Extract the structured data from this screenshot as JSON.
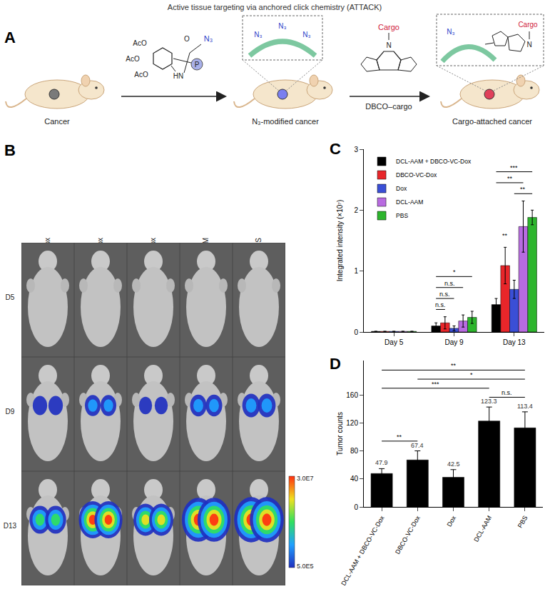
{
  "figure": {
    "panel_labels": [
      "A",
      "B",
      "C",
      "D"
    ],
    "schematic": {
      "title": "Active tissue targeting via anchored click chemistry (ATTACK)",
      "stages": [
        "Cancer",
        "N₃-modified cancer",
        "Cargo-attached cancer"
      ],
      "sugar": {
        "groups": [
          "AcO",
          "AcO",
          "AcO"
        ],
        "amide": "HN",
        "carbonyl": "O",
        "azide": "N₃",
        "anchor": "P"
      },
      "membrane_group": "N₃",
      "reagent": {
        "name": "DBCO–cargo",
        "cargo": "Cargo",
        "nitrogen": "N"
      }
    },
    "imaging": {
      "columns": [
        "DCL-AAM + DBCO-VC-Dox",
        "DBCO-VC-Dox",
        "Dox",
        "DCL-AAM",
        "PBS"
      ],
      "rows": [
        "D5",
        "D9",
        "D13"
      ],
      "colorbar": {
        "max": "3.0E7",
        "min": "5.0E5"
      }
    }
  },
  "chart_data": [
    {
      "type": "bar",
      "ylabel": "Integrated intensity (×10⁷)",
      "categories": [
        "Day 5",
        "Day 9",
        "Day 13"
      ],
      "series": [
        {
          "name": "DCL-AAM + DBCO-VC-Dox",
          "color": "#000000",
          "values": [
            0.01,
            0.1,
            0.45
          ],
          "errors": [
            0,
            0.05,
            0.1
          ]
        },
        {
          "name": "DBCO-VC-Dox",
          "color": "#e8262a",
          "values": [
            0.01,
            0.15,
            1.09
          ],
          "errors": [
            0,
            0.1,
            0.3
          ]
        },
        {
          "name": "Dox",
          "color": "#3a4fd6",
          "values": [
            0.01,
            0.06,
            0.7
          ],
          "errors": [
            0,
            0.04,
            0.15
          ]
        },
        {
          "name": "DCL-AAM",
          "color": "#b86be0",
          "values": [
            0.01,
            0.18,
            1.73
          ],
          "errors": [
            0,
            0.1,
            0.42
          ]
        },
        {
          "name": "PBS",
          "color": "#2db52d",
          "values": [
            0.01,
            0.24,
            1.88
          ],
          "errors": [
            0,
            0.1,
            0.12
          ]
        }
      ],
      "ylim": [
        0,
        3
      ],
      "yticks": [
        0,
        1,
        2,
        3
      ],
      "grid": false,
      "legend": "upper left",
      "annotations": [
        {
          "category": "Day 9",
          "from": "DCL-AAM + DBCO-VC-Dox",
          "to": "PBS",
          "text": "*"
        },
        {
          "category": "Day 9",
          "from": "DCL-AAM + DBCO-VC-Dox",
          "to": "DCL-AAM",
          "text": "n.s."
        },
        {
          "category": "Day 9",
          "from": "DCL-AAM + DBCO-VC-Dox",
          "to": "Dox",
          "text": "n.s."
        },
        {
          "category": "Day 9",
          "from": "DCL-AAM + DBCO-VC-Dox",
          "to": "DBCO-VC-Dox",
          "text": "n.s."
        },
        {
          "category": "Day 13",
          "from": "DCL-AAM + DBCO-VC-Dox",
          "to": "PBS",
          "text": "***"
        },
        {
          "category": "Day 13",
          "from": "DCL-AAM + DBCO-VC-Dox",
          "to": "DCL-AAM",
          "text": "**"
        },
        {
          "category": "Day 13",
          "from": "Dox",
          "to": "PBS",
          "text": "**"
        },
        {
          "category": "Day 13",
          "from": "DBCO-VC-Dox",
          "to": "DBCO-VC-Dox",
          "text": "**"
        }
      ]
    },
    {
      "type": "bar",
      "ylabel": "Tumor counts",
      "categories": [
        "DCL-AAM + DBCO-VC-Dox",
        "DBCO-VC-Dox",
        "Dox",
        "DCL-AAM",
        "PBS"
      ],
      "values": [
        47.9,
        67.4,
        42.5,
        123.3,
        113.4
      ],
      "errors": [
        7,
        13,
        11,
        20,
        23
      ],
      "color": "#000000",
      "ylim": [
        0,
        210
      ],
      "yticks": [
        0,
        40,
        80,
        120,
        160
      ],
      "grid": false,
      "data_labels": true,
      "annotations": [
        {
          "from": "DCL-AAM + DBCO-VC-Dox",
          "to": "PBS",
          "text": "**"
        },
        {
          "from": "DCL-AAM + DBCO-VC-Dox",
          "to": "DCL-AAM",
          "text": "***"
        },
        {
          "from": "DBCO-VC-Dox",
          "to": "PBS",
          "text": "*"
        },
        {
          "from": "DCL-AAM",
          "to": "PBS",
          "text": "n.s."
        },
        {
          "from": "DCL-AAM + DBCO-VC-Dox",
          "to": "DBCO-VC-Dox",
          "text": "**"
        }
      ]
    }
  ]
}
